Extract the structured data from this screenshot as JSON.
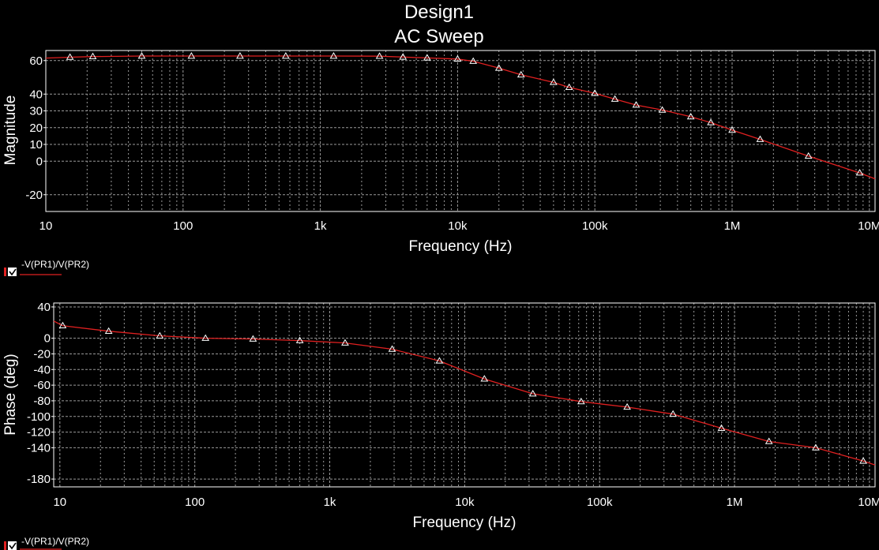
{
  "window": {
    "title": "Design1",
    "subtitle": "AC Sweep"
  },
  "colors": {
    "background": "#000000",
    "trace": "#e02020",
    "grid": "#9a9a9a",
    "text": "#ffffff"
  },
  "chart_data": [
    {
      "type": "line",
      "xscale": "log",
      "xlim": [
        10,
        11000000
      ],
      "xticks": [
        10,
        100,
        1000,
        10000,
        100000,
        1000000,
        10000000
      ],
      "xticklabels": [
        "10",
        "100",
        "1k",
        "10k",
        "100k",
        "1M",
        "10M"
      ],
      "xlabel": "Frequency (Hz)",
      "ylabel": "Magnitude",
      "ylim": [
        -30,
        66
      ],
      "yticks": [
        -20,
        0,
        10,
        20,
        30,
        40,
        60
      ],
      "grid": true,
      "legend": "-V(PR1)/V(PR2)",
      "legend_position": "below-left",
      "series": [
        {
          "name": "-V(PR1)/V(PR2)",
          "marker": "triangle",
          "x": [
            10,
            15,
            22,
            50,
            115,
            260,
            560,
            1250,
            2700,
            4000,
            6000,
            10000,
            13000,
            20000,
            29000,
            50000,
            65000,
            100000,
            140000,
            200000,
            310000,
            500000,
            700000,
            1000000,
            1600000,
            3600000,
            8500000,
            11000000
          ],
          "y": [
            61.5,
            62,
            62.4,
            62.7,
            62.7,
            62.7,
            62.7,
            62.7,
            62.6,
            62.1,
            61.6,
            60.9,
            59.6,
            55.5,
            51.5,
            47,
            44,
            40.5,
            37,
            33.5,
            30.5,
            26.5,
            23,
            18.5,
            13,
            3,
            -7,
            -10.5
          ]
        }
      ]
    },
    {
      "type": "line",
      "xscale": "log",
      "xlim": [
        9,
        11000000
      ],
      "xticks": [
        10,
        100,
        1000,
        10000,
        100000,
        1000000,
        10000000
      ],
      "xticklabels": [
        "10",
        "100",
        "1k",
        "10k",
        "100k",
        "1M",
        "10M"
      ],
      "xlabel": "Frequency (Hz)",
      "ylabel": "Phase (deg)",
      "ylim": [
        -190,
        45
      ],
      "yticks": [
        -180,
        -140,
        -120,
        -100,
        -80,
        -60,
        -40,
        -20,
        0,
        40
      ],
      "grid": true,
      "legend": "-V(PR1)/V(PR2)",
      "legend_position": "below-left",
      "series": [
        {
          "name": "-V(PR1)/V(PR2)",
          "marker": "triangle",
          "x": [
            9,
            10.5,
            23,
            55,
            120,
            270,
            600,
            1300,
            2900,
            6500,
            14000,
            32000,
            73000,
            160000,
            350000,
            800000,
            1800000,
            4000000,
            9000000,
            11000000
          ],
          "y": [
            22,
            16,
            9,
            3,
            0,
            -1,
            -3,
            -6,
            -14,
            -29,
            -52,
            -71,
            -81,
            -88,
            -97,
            -115,
            -132,
            -140,
            -157,
            -162
          ]
        }
      ]
    }
  ]
}
